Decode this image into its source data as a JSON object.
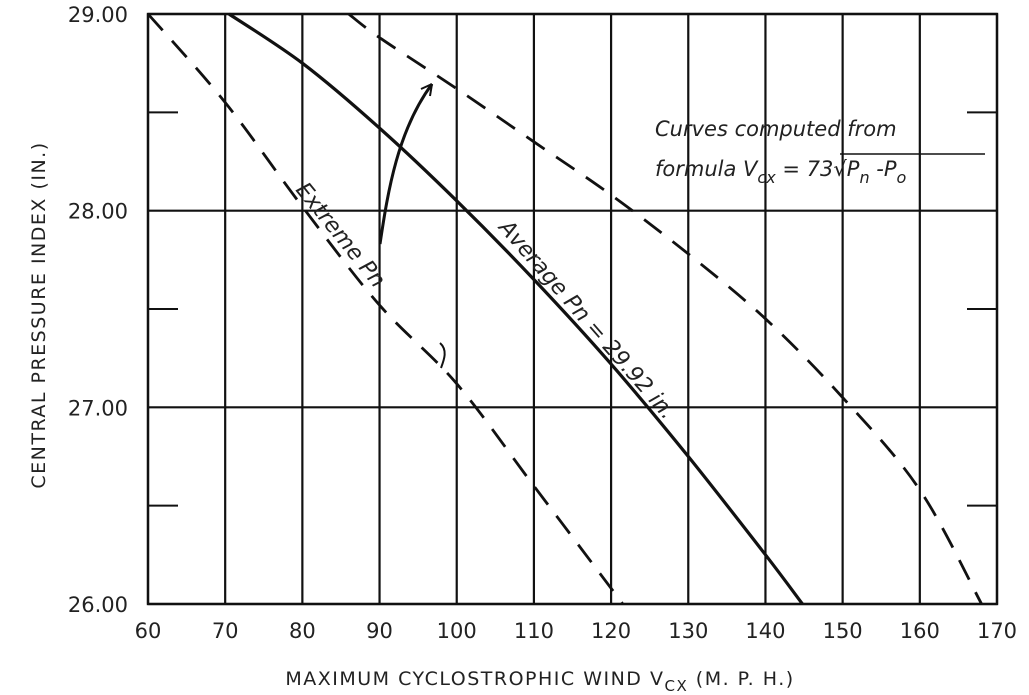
{
  "chart_data": {
    "type": "line",
    "title": "",
    "xlabel": "MAXIMUM CYCLOSTROPHIC WIND",
    "xlabel_symbol": "V",
    "xlabel_subscript": "CX",
    "xlabel_units": "(M. P. H.)",
    "ylabel": "CENTRAL PRESSURE INDEX (IN.)",
    "xlim": [
      60,
      170
    ],
    "ylim": [
      26.0,
      29.0
    ],
    "xticks": [
      "60",
      "70",
      "80",
      "90",
      "100",
      "110",
      "120",
      "130",
      "140",
      "150",
      "160",
      "170"
    ],
    "yticks": [
      {
        "value": 26.0,
        "label": "26.00"
      },
      {
        "value": 27.0,
        "label": "27.00"
      },
      {
        "value": 28.0,
        "label": "28.00"
      },
      {
        "value": 29.0,
        "label": "29.00"
      }
    ],
    "grid": true,
    "series": [
      {
        "name": "Average Pn = 29.92 in.",
        "style": "solid",
        "x": [
          70.5,
          80,
          90,
          100,
          110,
          120,
          130,
          140,
          144.8
        ],
        "y": [
          29.0,
          28.75,
          28.42,
          28.05,
          27.65,
          27.22,
          26.75,
          26.25,
          26.0
        ]
      },
      {
        "name": "Extreme Pn",
        "style": "dashed",
        "x": [
          60,
          70,
          80,
          90,
          100,
          110,
          120,
          121.5
        ],
        "y": [
          29.0,
          28.55,
          28.02,
          27.52,
          27.12,
          26.6,
          26.08,
          26.0
        ]
      },
      {
        "name": "",
        "style": "dashed",
        "x": [
          86,
          90,
          100,
          110,
          120,
          130,
          140,
          150,
          160,
          168
        ],
        "y": [
          29.0,
          28.88,
          28.62,
          28.35,
          28.08,
          27.78,
          27.45,
          27.05,
          26.58,
          26.0
        ]
      }
    ],
    "annotations": {
      "note_line1": "Curves computed from",
      "note_line2_prefix": "formula",
      "note_v": "V",
      "note_v_sub": "cx",
      "note_eq": "= 73",
      "note_radical": "√",
      "note_pn": "P",
      "note_pn_sub": "n",
      "note_minus": " -P",
      "note_po_sub": "o",
      "label_average": "Average Pn = 29.92 in.",
      "label_extreme": "Extreme Pn"
    }
  }
}
